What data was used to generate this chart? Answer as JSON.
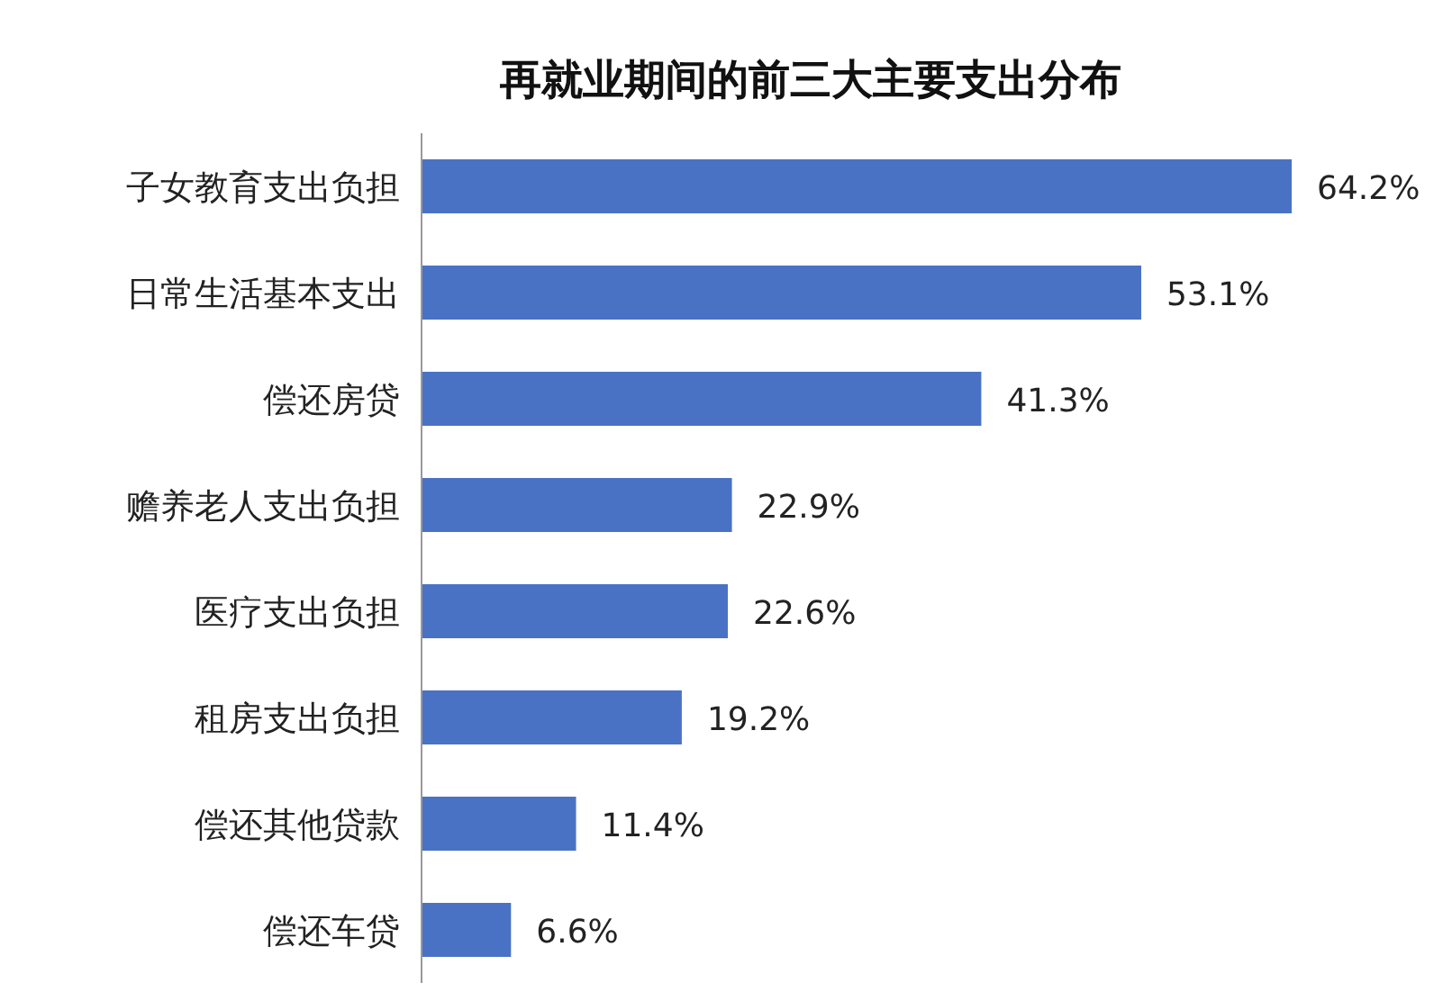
{
  "chart_data": {
    "type": "bar",
    "orientation": "horizontal",
    "title": "再就业期间的前三大主要支出分布",
    "categories": [
      "子女教育支出负担",
      "日常生活基本支出",
      "偿还房贷",
      "赡养老人支出负担",
      "医疗支出负担",
      "租房支出负担",
      "偿还其他贷款",
      "偿还车贷"
    ],
    "values": [
      64.2,
      53.1,
      41.3,
      22.9,
      22.6,
      19.2,
      11.4,
      6.6
    ],
    "value_labels": [
      "64.2%",
      "53.1%",
      "41.3%",
      "22.9%",
      "22.6%",
      "19.2%",
      "11.4%",
      "6.6%"
    ],
    "color": "#4a72c4"
  }
}
